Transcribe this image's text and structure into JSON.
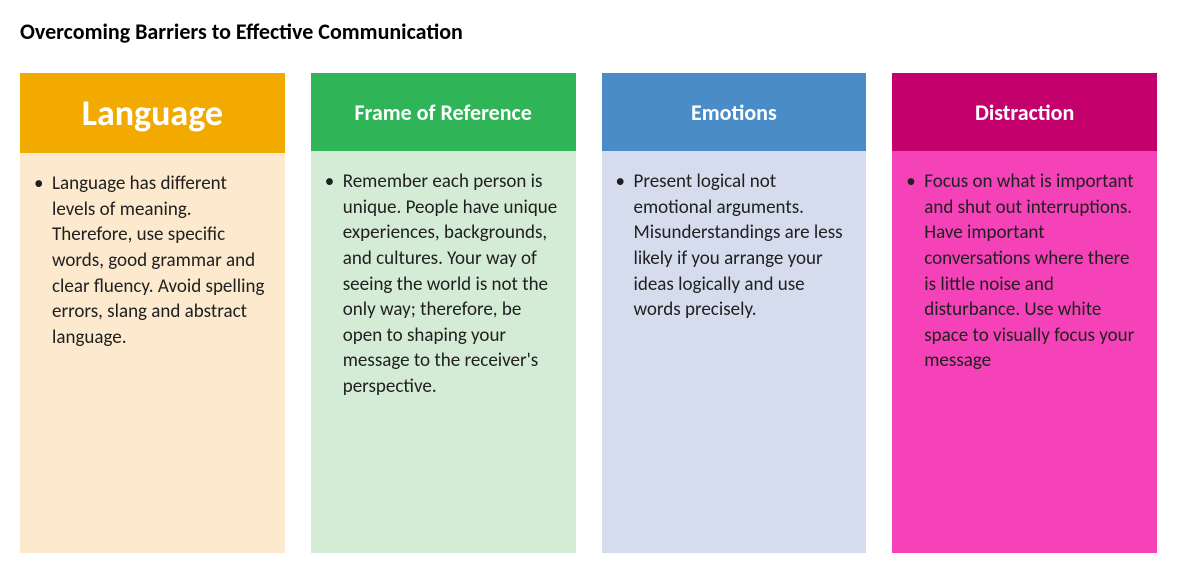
{
  "title": "Overcoming Barriers to Effective Communication",
  "columns": [
    {
      "header": "Language",
      "header_bg": "#f2a900",
      "header_color": "#ffffff",
      "header_fontsize": "36px",
      "body_bg": "#fde9cd",
      "body_text": "Language has different levels of meaning.  Therefore, use specific words, good grammar and clear fluency.  Avoid spelling errors, slang and abstract language."
    },
    {
      "header": "Frame of Reference",
      "header_bg": "#2fb457",
      "header_color": "#ffffff",
      "header_fontsize": "22px",
      "body_bg": "#d4ecd5",
      "body_text": "Remember each person is unique. People have unique experiences, backgrounds, and cultures.  Your way of seeing the world is not the only way; therefore, be open to shaping your message to the receiver's perspective."
    },
    {
      "header": "Emotions",
      "header_bg": "#4a8cc7",
      "header_color": "#ffffff",
      "header_fontsize": "22px",
      "body_bg": "#d4dced",
      "body_text": "Present logical not emotional arguments. Misunderstandings are less likely if you arrange your ideas logically and use words precisely."
    },
    {
      "header": "Distraction",
      "header_bg": "#c3006b",
      "header_color": "#ffffff",
      "header_fontsize": "22px",
      "body_bg": "#f542b8",
      "body_text": "Focus on what is important and shut out interruptions. Have important conversations where there is little noise and disturbance. Use white space to visually focus your message"
    }
  ]
}
